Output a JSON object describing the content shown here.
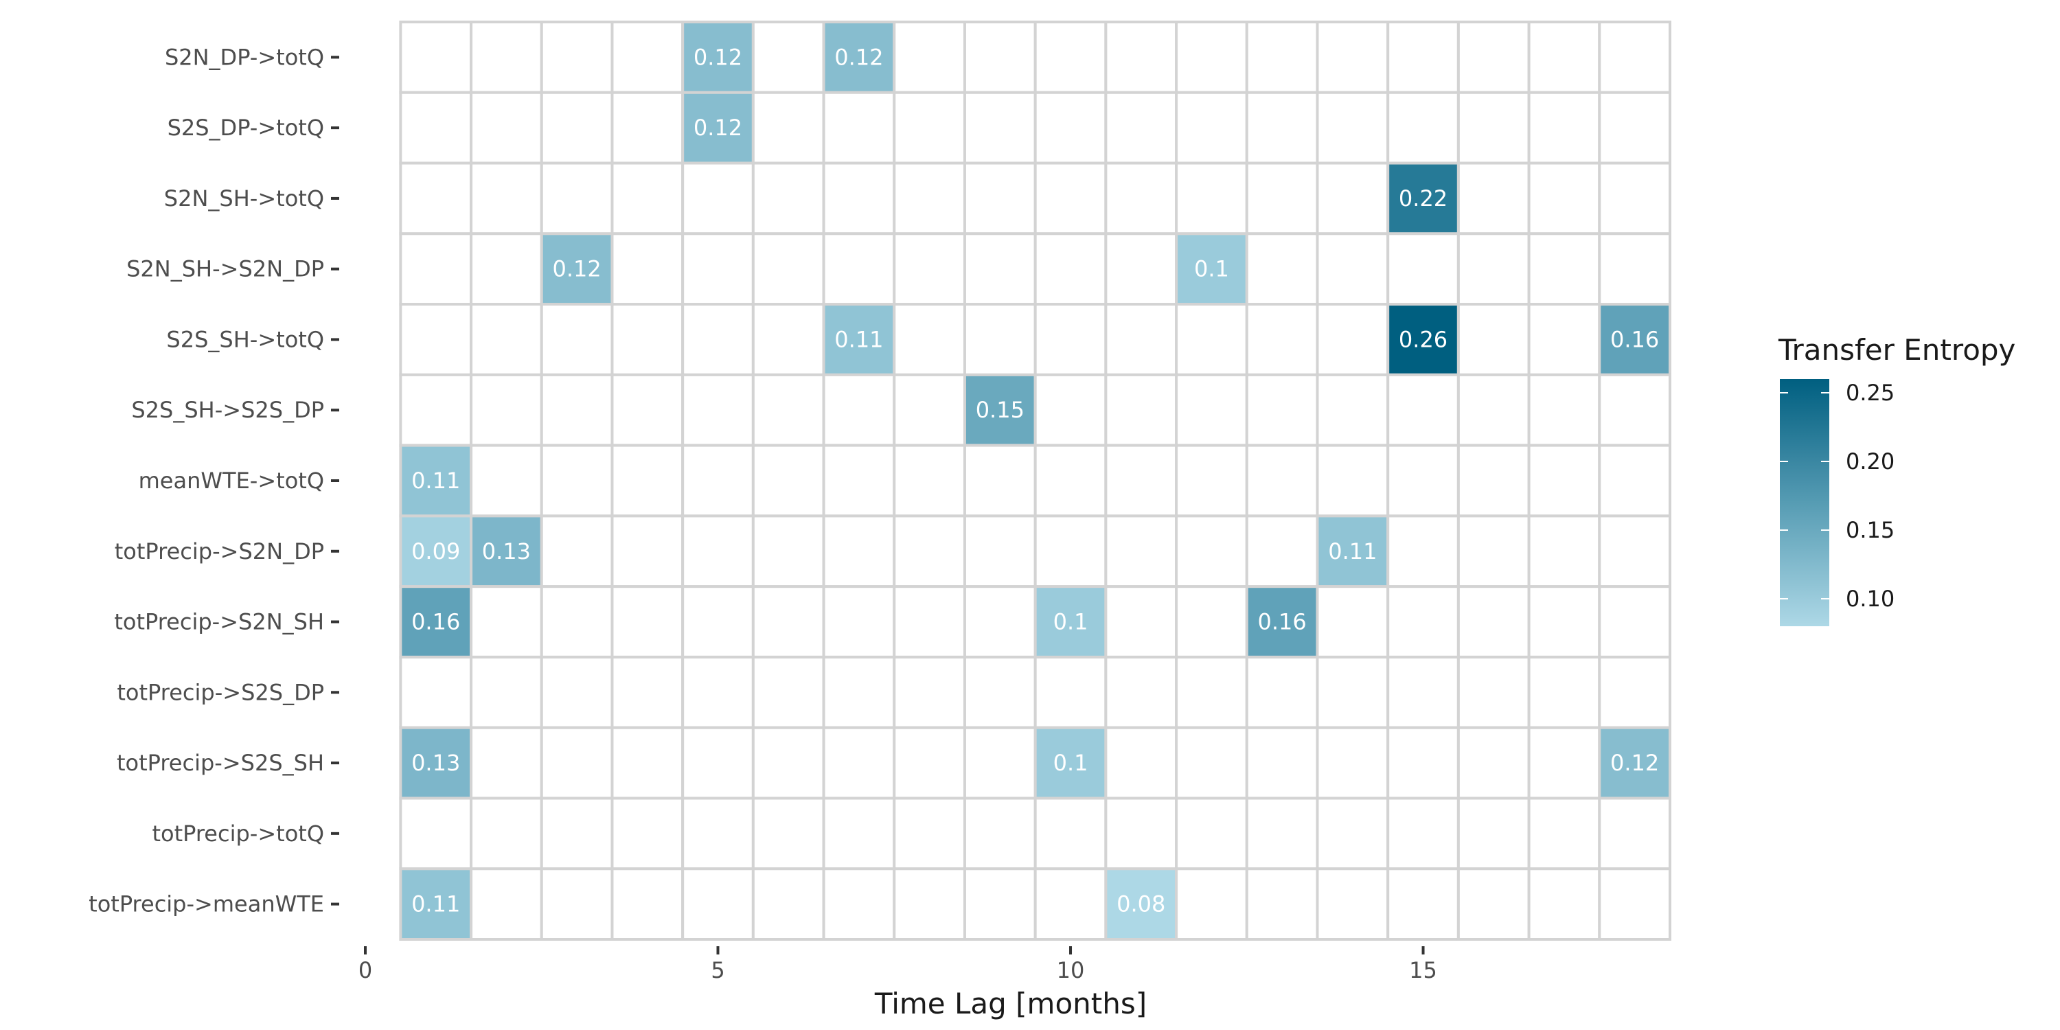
{
  "chart_data": {
    "type": "heatmap",
    "title": "",
    "xlabel": "Time Lag [months]",
    "ylabel": "",
    "xlim": [
      0,
      18.5
    ],
    "x_ticks": [
      0,
      5,
      10,
      15
    ],
    "x_tick_labels": [
      "0",
      "5",
      "10",
      "15"
    ],
    "x_lags": [
      1,
      2,
      3,
      4,
      5,
      6,
      7,
      8,
      9,
      10,
      11,
      12,
      13,
      14,
      15,
      16,
      17,
      18
    ],
    "rows": [
      "S2N_DP->totQ",
      "S2S_DP->totQ",
      "S2N_SH->totQ",
      "S2N_SH->S2N_DP",
      "S2S_SH->totQ",
      "S2S_SH->S2S_DP",
      "meanWTE->totQ",
      "totPrecip->S2N_DP",
      "totPrecip->S2N_SH",
      "totPrecip->S2S_DP",
      "totPrecip->S2S_SH",
      "totPrecip->totQ",
      "totPrecip->meanWTE"
    ],
    "values": [
      {
        "row": "S2N_DP->totQ",
        "lag": 5,
        "value": 0.12
      },
      {
        "row": "S2N_DP->totQ",
        "lag": 7,
        "value": 0.12
      },
      {
        "row": "S2S_DP->totQ",
        "lag": 5,
        "value": 0.12
      },
      {
        "row": "S2N_SH->totQ",
        "lag": 15,
        "value": 0.22
      },
      {
        "row": "S2N_SH->S2N_DP",
        "lag": 3,
        "value": 0.12
      },
      {
        "row": "S2N_SH->S2N_DP",
        "lag": 12,
        "value": 0.1
      },
      {
        "row": "S2S_SH->totQ",
        "lag": 7,
        "value": 0.11
      },
      {
        "row": "S2S_SH->totQ",
        "lag": 15,
        "value": 0.26
      },
      {
        "row": "S2S_SH->totQ",
        "lag": 18,
        "value": 0.16
      },
      {
        "row": "S2S_SH->S2S_DP",
        "lag": 9,
        "value": 0.15
      },
      {
        "row": "meanWTE->totQ",
        "lag": 1,
        "value": 0.11
      },
      {
        "row": "totPrecip->S2N_DP",
        "lag": 1,
        "value": 0.09
      },
      {
        "row": "totPrecip->S2N_DP",
        "lag": 2,
        "value": 0.13
      },
      {
        "row": "totPrecip->S2N_DP",
        "lag": 14,
        "value": 0.11
      },
      {
        "row": "totPrecip->S2N_SH",
        "lag": 1,
        "value": 0.16
      },
      {
        "row": "totPrecip->S2N_SH",
        "lag": 10,
        "value": 0.1
      },
      {
        "row": "totPrecip->S2N_SH",
        "lag": 13,
        "value": 0.16
      },
      {
        "row": "totPrecip->S2S_SH",
        "lag": 1,
        "value": 0.13
      },
      {
        "row": "totPrecip->S2S_SH",
        "lag": 10,
        "value": 0.1
      },
      {
        "row": "totPrecip->S2S_SH",
        "lag": 18,
        "value": 0.12
      },
      {
        "row": "totPrecip->meanWTE",
        "lag": 1,
        "value": 0.11
      },
      {
        "row": "totPrecip->meanWTE",
        "lag": 11,
        "value": 0.08
      }
    ],
    "colorscale": {
      "title": "Transfer Entropy",
      "low_color": "#add8e6",
      "high_color": "#005f80",
      "empty_color": "#ffffff",
      "grid_color": "#d3d3d3",
      "range": [
        0.08,
        0.26
      ],
      "ticks": [
        0.25,
        0.2,
        0.15,
        0.1
      ],
      "tick_labels": [
        "0.25",
        "0.20",
        "0.15",
        "0.10"
      ]
    }
  }
}
